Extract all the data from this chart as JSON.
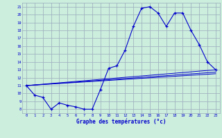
{
  "xlabel": "Graphe des températures (°c)",
  "background_color": "#cceedd",
  "grid_color": "#99aabb",
  "line_color": "#0000cc",
  "xlim": [
    -0.5,
    23.5
  ],
  "ylim": [
    7.5,
    21.5
  ],
  "yticks": [
    8,
    9,
    10,
    11,
    12,
    13,
    14,
    15,
    16,
    17,
    18,
    19,
    20,
    21
  ],
  "xticks": [
    0,
    1,
    2,
    3,
    4,
    5,
    6,
    7,
    8,
    9,
    10,
    11,
    12,
    13,
    14,
    15,
    16,
    17,
    18,
    19,
    20,
    21,
    22,
    23
  ],
  "curve_x": [
    0,
    1,
    2,
    3,
    4,
    5,
    6,
    7,
    8,
    9,
    10,
    11,
    12,
    13,
    14,
    15,
    16,
    17,
    18,
    19,
    20,
    21,
    22,
    23
  ],
  "curve_y": [
    11.0,
    9.8,
    9.5,
    8.0,
    8.8,
    8.5,
    8.3,
    8.0,
    8.0,
    10.5,
    13.2,
    13.5,
    15.5,
    18.5,
    20.8,
    21.0,
    20.2,
    18.5,
    20.2,
    20.2,
    18.0,
    16.2,
    14.0,
    13.0
  ],
  "straight_lines": [
    {
      "x": [
        0,
        23
      ],
      "y": [
        11.0,
        13.0
      ]
    },
    {
      "x": [
        0,
        23
      ],
      "y": [
        11.0,
        12.7
      ]
    },
    {
      "x": [
        0,
        23
      ],
      "y": [
        11.0,
        12.5
      ]
    }
  ]
}
